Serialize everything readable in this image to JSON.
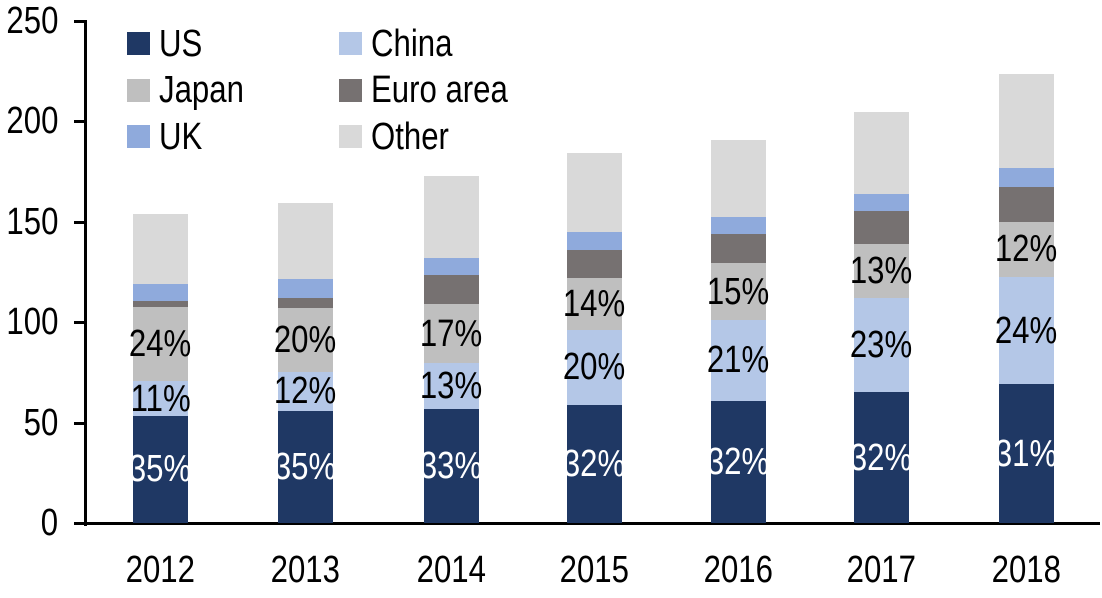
{
  "chart_data": {
    "type": "bar",
    "variant": "stacked-column",
    "title": "",
    "xlabel": "",
    "ylabel": "",
    "grid": "off",
    "categories": [
      "2012",
      "2013",
      "2014",
      "2015",
      "2016",
      "2017",
      "2018"
    ],
    "series": [
      {
        "name": "US",
        "color": "#1F3864",
        "values": [
          53.5,
          56,
          57,
          59,
          61,
          65,
          69
        ],
        "data_labels": [
          "35%",
          "35%",
          "33%",
          "32%",
          "32%",
          "32%",
          "31%"
        ],
        "label_color": "#FFFFFF"
      },
      {
        "name": "China",
        "color": "#B4C7E7",
        "values": [
          17,
          19,
          22.5,
          37,
          40,
          47,
          53.5
        ],
        "data_labels": [
          "11%",
          "12%",
          "13%",
          "20%",
          "21%",
          "23%",
          "24%"
        ],
        "label_color": "#000000"
      },
      {
        "name": "Japan",
        "color": "#BFBFBF",
        "values": [
          37,
          32,
          29.5,
          26,
          28.5,
          27,
          27.5
        ],
        "data_labels": [
          "24%",
          "20%",
          "17%",
          "14%",
          "15%",
          "13%",
          "12%"
        ],
        "label_color": "#000000"
      },
      {
        "name": "Euro area",
        "color": "#767171",
        "values": [
          3,
          5,
          14.5,
          14,
          14.5,
          16.5,
          17.5
        ],
        "data_labels": null,
        "label_color": null
      },
      {
        "name": "UK",
        "color": "#8FAADC",
        "values": [
          8.5,
          9.5,
          8.5,
          9,
          8.5,
          8.5,
          9.5
        ],
        "data_labels": null,
        "label_color": null
      },
      {
        "name": "Other",
        "color": "#D9D9D9",
        "values": [
          35,
          38,
          41,
          39.5,
          38.5,
          40.5,
          46.5
        ],
        "data_labels": null,
        "label_color": null
      }
    ],
    "approx_totals": [
      154,
      159.5,
      173,
      184.5,
      191,
      204.5,
      223.5
    ],
    "y_axis": {
      "min": 0,
      "max": 250,
      "tick_interval": 50,
      "tick_labels": [
        "0",
        "50",
        "100",
        "150",
        "200",
        "250"
      ]
    },
    "legend": {
      "position": "top-left",
      "columns": 2,
      "entries": [
        "US",
        "China",
        "Japan",
        "Euro area",
        "UK",
        "Other"
      ]
    }
  },
  "colors": {
    "background": "#FFFFFF",
    "axis": "#000000",
    "text": "#000000"
  }
}
